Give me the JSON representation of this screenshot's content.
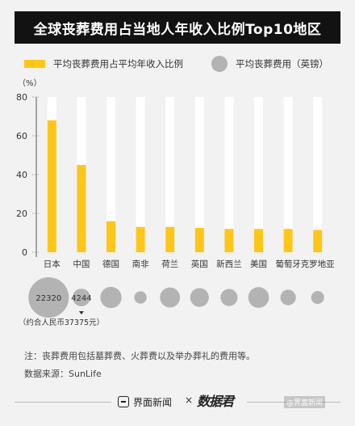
{
  "title": "全球丧葬费用占当地人年收入比例Top10地区",
  "legend": {
    "bar_label": "平均丧葬费用占平均年收入比例",
    "bubble_label": "平均丧葬费用（英镑）"
  },
  "colors": {
    "bar": "#ffc61a",
    "bar_track": "#ffffff",
    "bubble": "#b3b3b3",
    "title_bg": "#121212"
  },
  "chart_data": {
    "type": "bar",
    "ylabel": "（%）",
    "ylim": [
      0,
      80
    ],
    "yticks": [
      0,
      20,
      40,
      60,
      80
    ],
    "categories": [
      "日本",
      "中国",
      "德国",
      "南非",
      "荷兰",
      "英国",
      "新西兰",
      "美国",
      "葡萄牙",
      "克罗地亚"
    ],
    "series": [
      {
        "values": [
          68,
          45,
          16,
          13,
          13,
          12.5,
          12,
          12,
          12,
          11.5
        ]
      }
    ],
    "bubbles": {
      "values": [
        22320,
        4244,
        6200,
        2100,
        5500,
        4800,
        4000,
        5900,
        3300,
        2300
      ],
      "labels": [
        "22320",
        "4244",
        "",
        "",
        "",
        "",
        "",
        "",
        "",
        ""
      ],
      "annotation": "（约合人民币37375元）",
      "annotation_index": 1
    }
  },
  "notes": {
    "note": "注：丧葬费用包括墓葬费、火葬费以及举办葬礼的费用等。",
    "source": "数据来源：SunLife"
  },
  "footer": {
    "brand": "界面新闻",
    "times": "×",
    "data_logo": "数据君",
    "watermark": "@界面新闻"
  }
}
